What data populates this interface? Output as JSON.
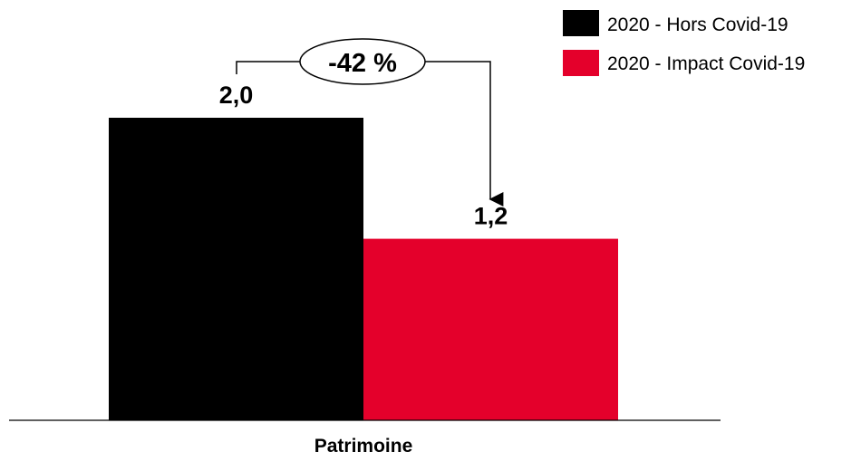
{
  "chart_data": {
    "type": "bar",
    "categories": [
      "Patrimoine"
    ],
    "series": [
      {
        "name": "2020 - Hors Covid-19",
        "values": [
          2.0
        ],
        "color": "#000000",
        "value_label": "2,0"
      },
      {
        "name": "2020 - Impact Covid-19",
        "values": [
          1.2
        ],
        "color": "#E4002B",
        "value_label": "1,2"
      }
    ],
    "annotation": {
      "text": "-42 %"
    },
    "ylim": [
      0,
      2.0
    ],
    "legend_position": "top-right",
    "grid": false,
    "title": "",
    "xlabel": "",
    "ylabel": ""
  }
}
